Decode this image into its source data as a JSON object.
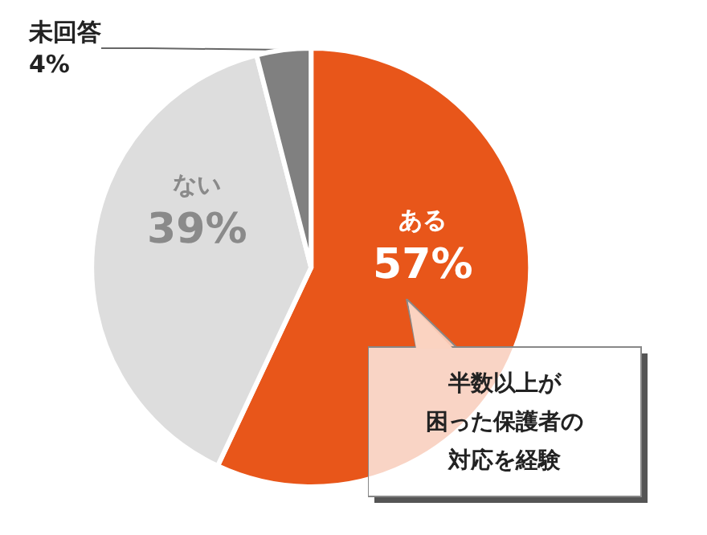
{
  "chart_data": {
    "type": "pie",
    "categories": [
      "ある",
      "ない",
      "未回答"
    ],
    "values": [
      57,
      39,
      4
    ],
    "value_labels": [
      "57%",
      "39%",
      "4%"
    ],
    "colors": [
      "#e8561a",
      "#dddddd",
      "#808080"
    ],
    "annotations": [
      "半数以上が",
      "困った保護者の",
      "対応を経験"
    ],
    "legend": false
  }
}
